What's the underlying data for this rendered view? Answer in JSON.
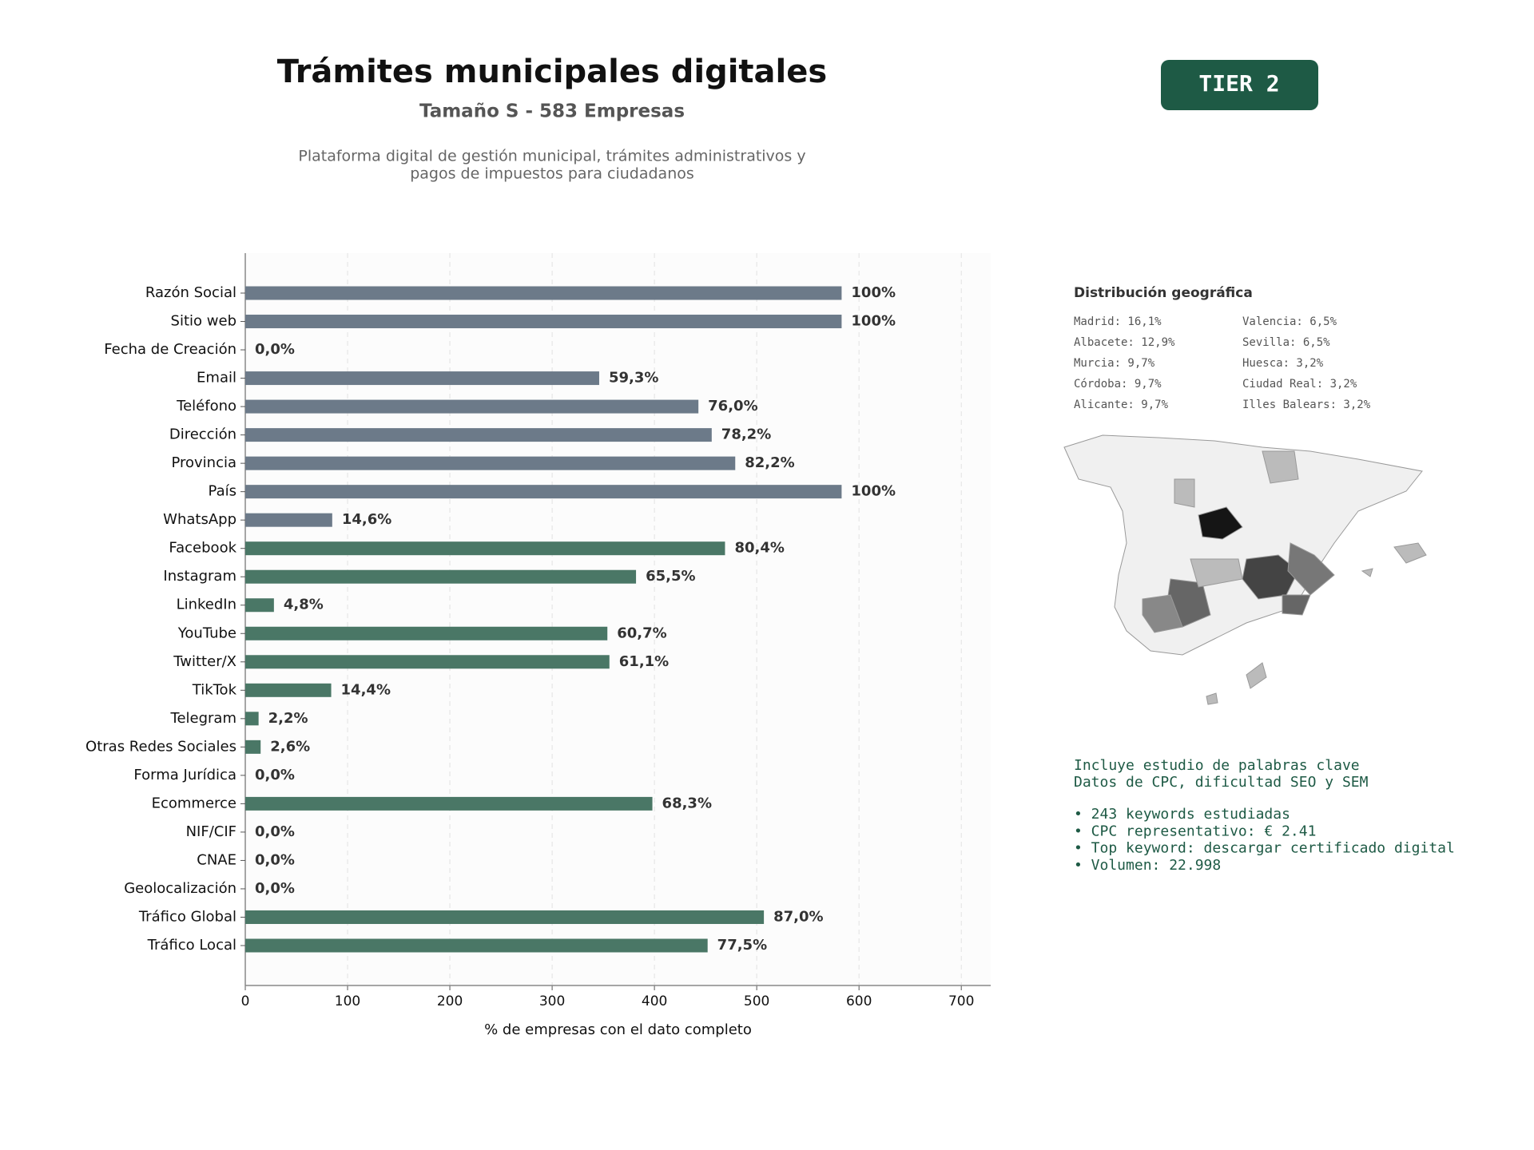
{
  "chart_data": {
    "type": "barh",
    "title": "Trámites municipales digitales",
    "subtitle": "Tamaño S - 583 Empresas",
    "description": [
      "Plataforma digital de gestión municipal, trámites administrativos y",
      "pagos de impuestos para ciudadanos"
    ],
    "x_label": "% de empresas con el dato completo",
    "categories": [
      "Razón Social",
      "Sitio web",
      "Fecha de Creación",
      "Email",
      "Teléfono",
      "Dirección",
      "Provincia",
      "País",
      "WhatsApp",
      "Facebook",
      "Instagram",
      "LinkedIn",
      "YouTube",
      "Twitter/X",
      "TikTok",
      "Telegram",
      "Otras Redes Sociales",
      "Forma Jurídica",
      "Ecommerce",
      "NIF/CIF",
      "CNAE",
      "Geolocalización",
      "Tráfico Global",
      "Tráfico Local"
    ],
    "values": [
      583,
      583,
      0,
      346,
      443,
      456,
      479,
      583,
      85,
      469,
      382,
      28,
      354,
      356,
      84,
      13,
      15,
      0,
      398,
      0,
      0,
      0,
      507,
      452
    ],
    "value_labels": [
      "100%",
      "100%",
      "0,0%",
      "59,3%",
      "76,0%",
      "78,2%",
      "82,2%",
      "100%",
      "14,6%",
      "80,4%",
      "65,5%",
      "4,8%",
      "60,7%",
      "61,1%",
      "14,4%",
      "2,2%",
      "2,6%",
      "0,0%",
      "68,3%",
      "0,0%",
      "0,0%",
      "0,0%",
      "87,0%",
      "77,5%"
    ],
    "colors": [
      "#6c7a89",
      "#6c7a89",
      "#6c7a89",
      "#6c7a89",
      "#6c7a89",
      "#6c7a89",
      "#6c7a89",
      "#6c7a89",
      "#6c7a89",
      "#4a7766",
      "#4a7766",
      "#4a7766",
      "#4a7766",
      "#4a7766",
      "#4a7766",
      "#4a7766",
      "#4a7766",
      "#4a7766",
      "#4a7766",
      "#4a7766",
      "#4a7766",
      "#4a7766",
      "#4a7766",
      "#4a7766"
    ],
    "xlim": [
      0,
      728.75
    ],
    "xticks": [
      0,
      100,
      200,
      300,
      400,
      500,
      600,
      700
    ],
    "grid": true
  },
  "badge": "TIER 2",
  "geo": {
    "title": "Distribución geográfica",
    "items": [
      "Madrid: 16,1%",
      "Albacete: 12,9%",
      "Murcia: 9,7%",
      "Córdoba: 9,7%",
      "Alicante: 9,7%",
      "Valencia: 6,5%",
      "Sevilla: 6,5%",
      "Huesca: 3,2%",
      "Ciudad Real: 3,2%",
      "Illes Balears: 3,2%"
    ]
  },
  "keywords": {
    "intro": [
      "Incluye estudio de palabras clave",
      "Datos de CPC, dificultad SEO y SEM"
    ],
    "bullets": [
      "• 243 keywords estudiadas",
      "• CPC representativo: € 2.41",
      "• Top keyword: descargar certificado digital",
      "• Volumen: 22.998"
    ]
  }
}
